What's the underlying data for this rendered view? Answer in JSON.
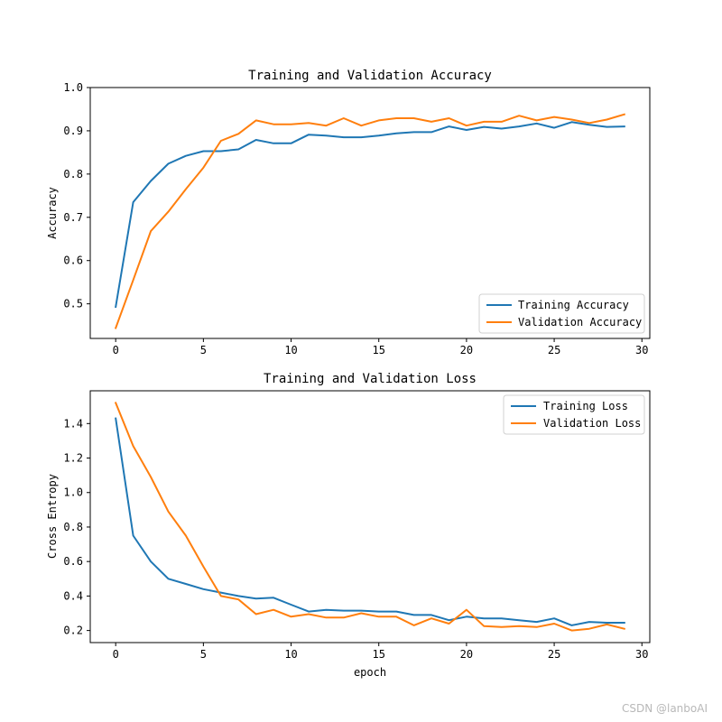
{
  "chart_data": [
    {
      "type": "line",
      "title": "Training and Validation Accuracy",
      "xlabel": "",
      "ylabel": "Accuracy",
      "xlim": [
        -1.45,
        30.45
      ],
      "ylim": [
        0.42,
        1.0
      ],
      "xticks": [
        0,
        5,
        10,
        15,
        20,
        25,
        30
      ],
      "yticks": [
        0.5,
        0.6,
        0.7,
        0.8,
        0.9,
        1.0
      ],
      "xtick_labels": [
        "0",
        "5",
        "10",
        "15",
        "20",
        "25",
        "30"
      ],
      "ytick_labels": [
        "0.5",
        "0.6",
        "0.7",
        "0.8",
        "0.9",
        "1.0"
      ],
      "legend_position": "lower-right",
      "x": [
        0,
        1,
        2,
        3,
        4,
        5,
        6,
        7,
        8,
        9,
        10,
        11,
        12,
        13,
        14,
        15,
        16,
        17,
        18,
        19,
        20,
        21,
        22,
        23,
        24,
        25,
        26,
        27,
        28,
        29
      ],
      "series": [
        {
          "name": "Training Accuracy",
          "color": "#1f77b4",
          "values": [
            0.493,
            0.735,
            0.784,
            0.824,
            0.842,
            0.853,
            0.853,
            0.857,
            0.879,
            0.871,
            0.871,
            0.891,
            0.889,
            0.885,
            0.885,
            0.889,
            0.894,
            0.897,
            0.897,
            0.91,
            0.902,
            0.909,
            0.905,
            0.91,
            0.917,
            0.907,
            0.92,
            0.914,
            0.909,
            0.91
          ]
        },
        {
          "name": "Validation Accuracy",
          "color": "#ff7f0e",
          "values": [
            0.444,
            0.555,
            0.668,
            0.713,
            0.765,
            0.815,
            0.877,
            0.893,
            0.924,
            0.915,
            0.915,
            0.918,
            0.912,
            0.929,
            0.912,
            0.924,
            0.929,
            0.929,
            0.921,
            0.929,
            0.912,
            0.921,
            0.921,
            0.935,
            0.924,
            0.932,
            0.926,
            0.918,
            0.926,
            0.938
          ]
        }
      ]
    },
    {
      "type": "line",
      "title": "Training and Validation Loss",
      "xlabel": "epoch",
      "ylabel": "Cross Entropy",
      "xlim": [
        -1.45,
        30.45
      ],
      "ylim": [
        0.13,
        1.59
      ],
      "xticks": [
        0,
        5,
        10,
        15,
        20,
        25,
        30
      ],
      "yticks": [
        0.2,
        0.4,
        0.6,
        0.8,
        1.0,
        1.2,
        1.4
      ],
      "xtick_labels": [
        "0",
        "5",
        "10",
        "15",
        "20",
        "25",
        "30"
      ],
      "ytick_labels": [
        "0.2",
        "0.4",
        "0.6",
        "0.8",
        "1.0",
        "1.2",
        "1.4"
      ],
      "legend_position": "upper-right",
      "x": [
        0,
        1,
        2,
        3,
        4,
        5,
        6,
        7,
        8,
        9,
        10,
        11,
        12,
        13,
        14,
        15,
        16,
        17,
        18,
        19,
        20,
        21,
        22,
        23,
        24,
        25,
        26,
        27,
        28,
        29
      ],
      "series": [
        {
          "name": "Training Loss",
          "color": "#1f77b4",
          "values": [
            1.43,
            0.75,
            0.6,
            0.5,
            0.47,
            0.44,
            0.42,
            0.4,
            0.385,
            0.39,
            0.35,
            0.31,
            0.32,
            0.315,
            0.315,
            0.31,
            0.31,
            0.29,
            0.29,
            0.26,
            0.28,
            0.27,
            0.27,
            0.26,
            0.25,
            0.27,
            0.23,
            0.25,
            0.245,
            0.245
          ]
        },
        {
          "name": "Validation Loss",
          "color": "#ff7f0e",
          "values": [
            1.52,
            1.27,
            1.09,
            0.89,
            0.75,
            0.57,
            0.4,
            0.38,
            0.295,
            0.32,
            0.28,
            0.295,
            0.275,
            0.275,
            0.3,
            0.28,
            0.28,
            0.23,
            0.27,
            0.24,
            0.32,
            0.225,
            0.22,
            0.225,
            0.22,
            0.24,
            0.2,
            0.21,
            0.235,
            0.21
          ]
        }
      ]
    }
  ],
  "watermark": "CSDN @lanboAI"
}
